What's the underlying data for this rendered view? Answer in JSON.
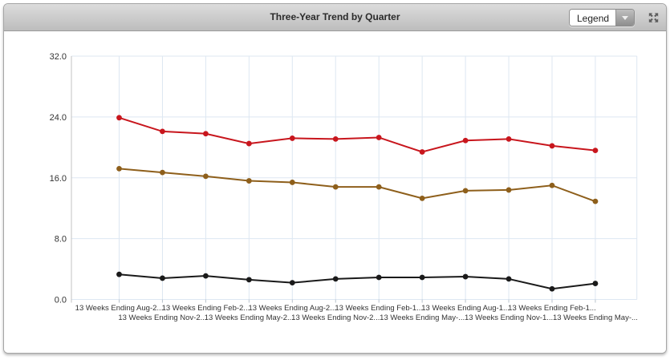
{
  "header": {
    "title": "Three-Year Trend by Quarter",
    "legend": {
      "label": "Legend"
    }
  },
  "chart_data": {
    "type": "line",
    "title": "Three-Year Trend by Quarter",
    "categories": [
      "13 Weeks Ending Aug-2...",
      "13 Weeks Ending Nov-2...",
      "13 Weeks Ending Feb-2...",
      "13 Weeks Ending May-2...",
      "13 Weeks Ending Aug-2...",
      "13 Weeks Ending Nov-2...",
      "13 Weeks Ending Feb-1...",
      "13 Weeks Ending May-...",
      "13 Weeks Ending Aug-1...",
      "13 Weeks Ending Nov-1...",
      "13 Weeks Ending Feb-1...",
      "13 Weeks Ending May-..."
    ],
    "series": [
      {
        "name": "red",
        "color": "#c8161d",
        "values": [
          23.9,
          22.1,
          21.8,
          20.5,
          21.2,
          21.1,
          21.3,
          19.4,
          20.9,
          21.1,
          20.2,
          19.6
        ]
      },
      {
        "name": "brown",
        "color": "#8e5f1b",
        "values": [
          17.2,
          16.7,
          16.2,
          15.6,
          15.4,
          14.8,
          14.8,
          13.3,
          14.3,
          14.4,
          15.0,
          12.9
        ]
      },
      {
        "name": "black",
        "color": "#1a1a1a",
        "values": [
          3.3,
          2.8,
          3.1,
          2.6,
          2.2,
          2.7,
          2.9,
          2.9,
          3.0,
          2.7,
          1.4,
          2.1
        ]
      }
    ],
    "ylim": [
      0,
      32
    ],
    "yticks": [
      "0.0",
      "8.0",
      "16.0",
      "24.0",
      "32.0"
    ],
    "grid": true,
    "x_labels_staggered": true,
    "legend_position": "collapsed-dropdown",
    "gridline_color": "#dde7f2",
    "axis_color": "#c3c3c3",
    "tick_color": "#b9c2cc"
  }
}
